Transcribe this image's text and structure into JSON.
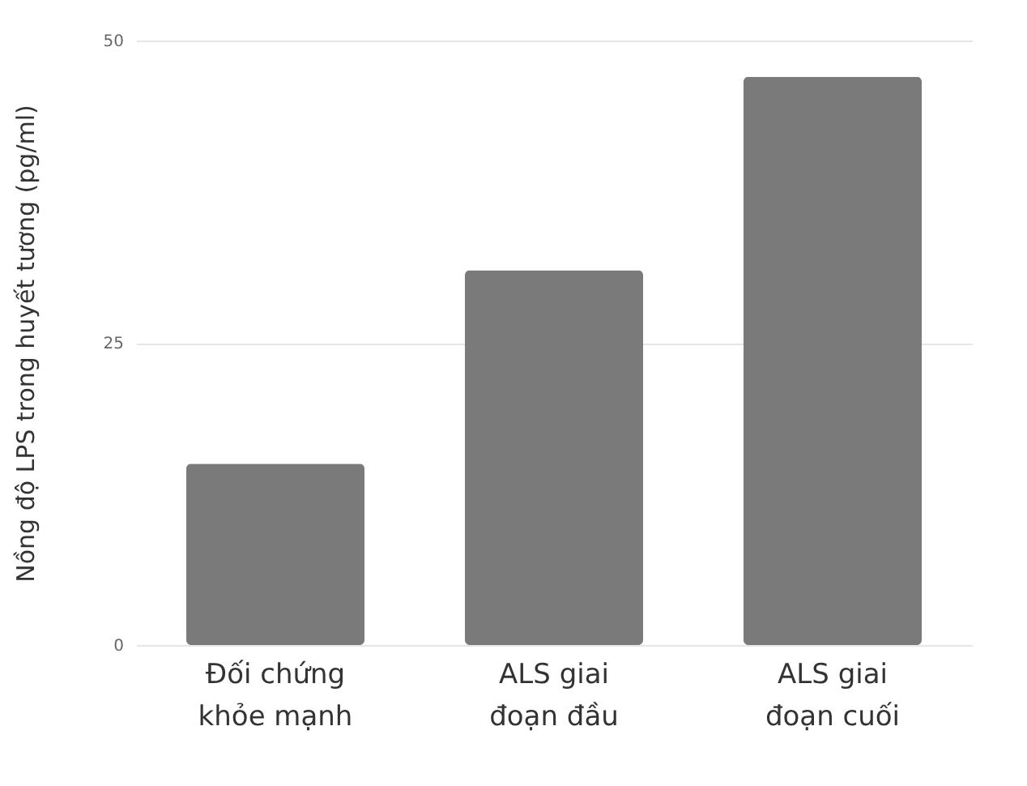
{
  "chart_data": {
    "type": "bar",
    "ylabel": "Nồng độ LPS trong huyết tương (pg/ml)",
    "categories": [
      "Đối chứng khỏe mạnh",
      "ALS giai đoạn đầu",
      "ALS giai đoạn cuối"
    ],
    "values": [
      15,
      31,
      47
    ],
    "color": "#7a7a7a",
    "ylim": [
      0,
      50
    ],
    "yticks": [
      0,
      25,
      50
    ],
    "grid": "y"
  }
}
